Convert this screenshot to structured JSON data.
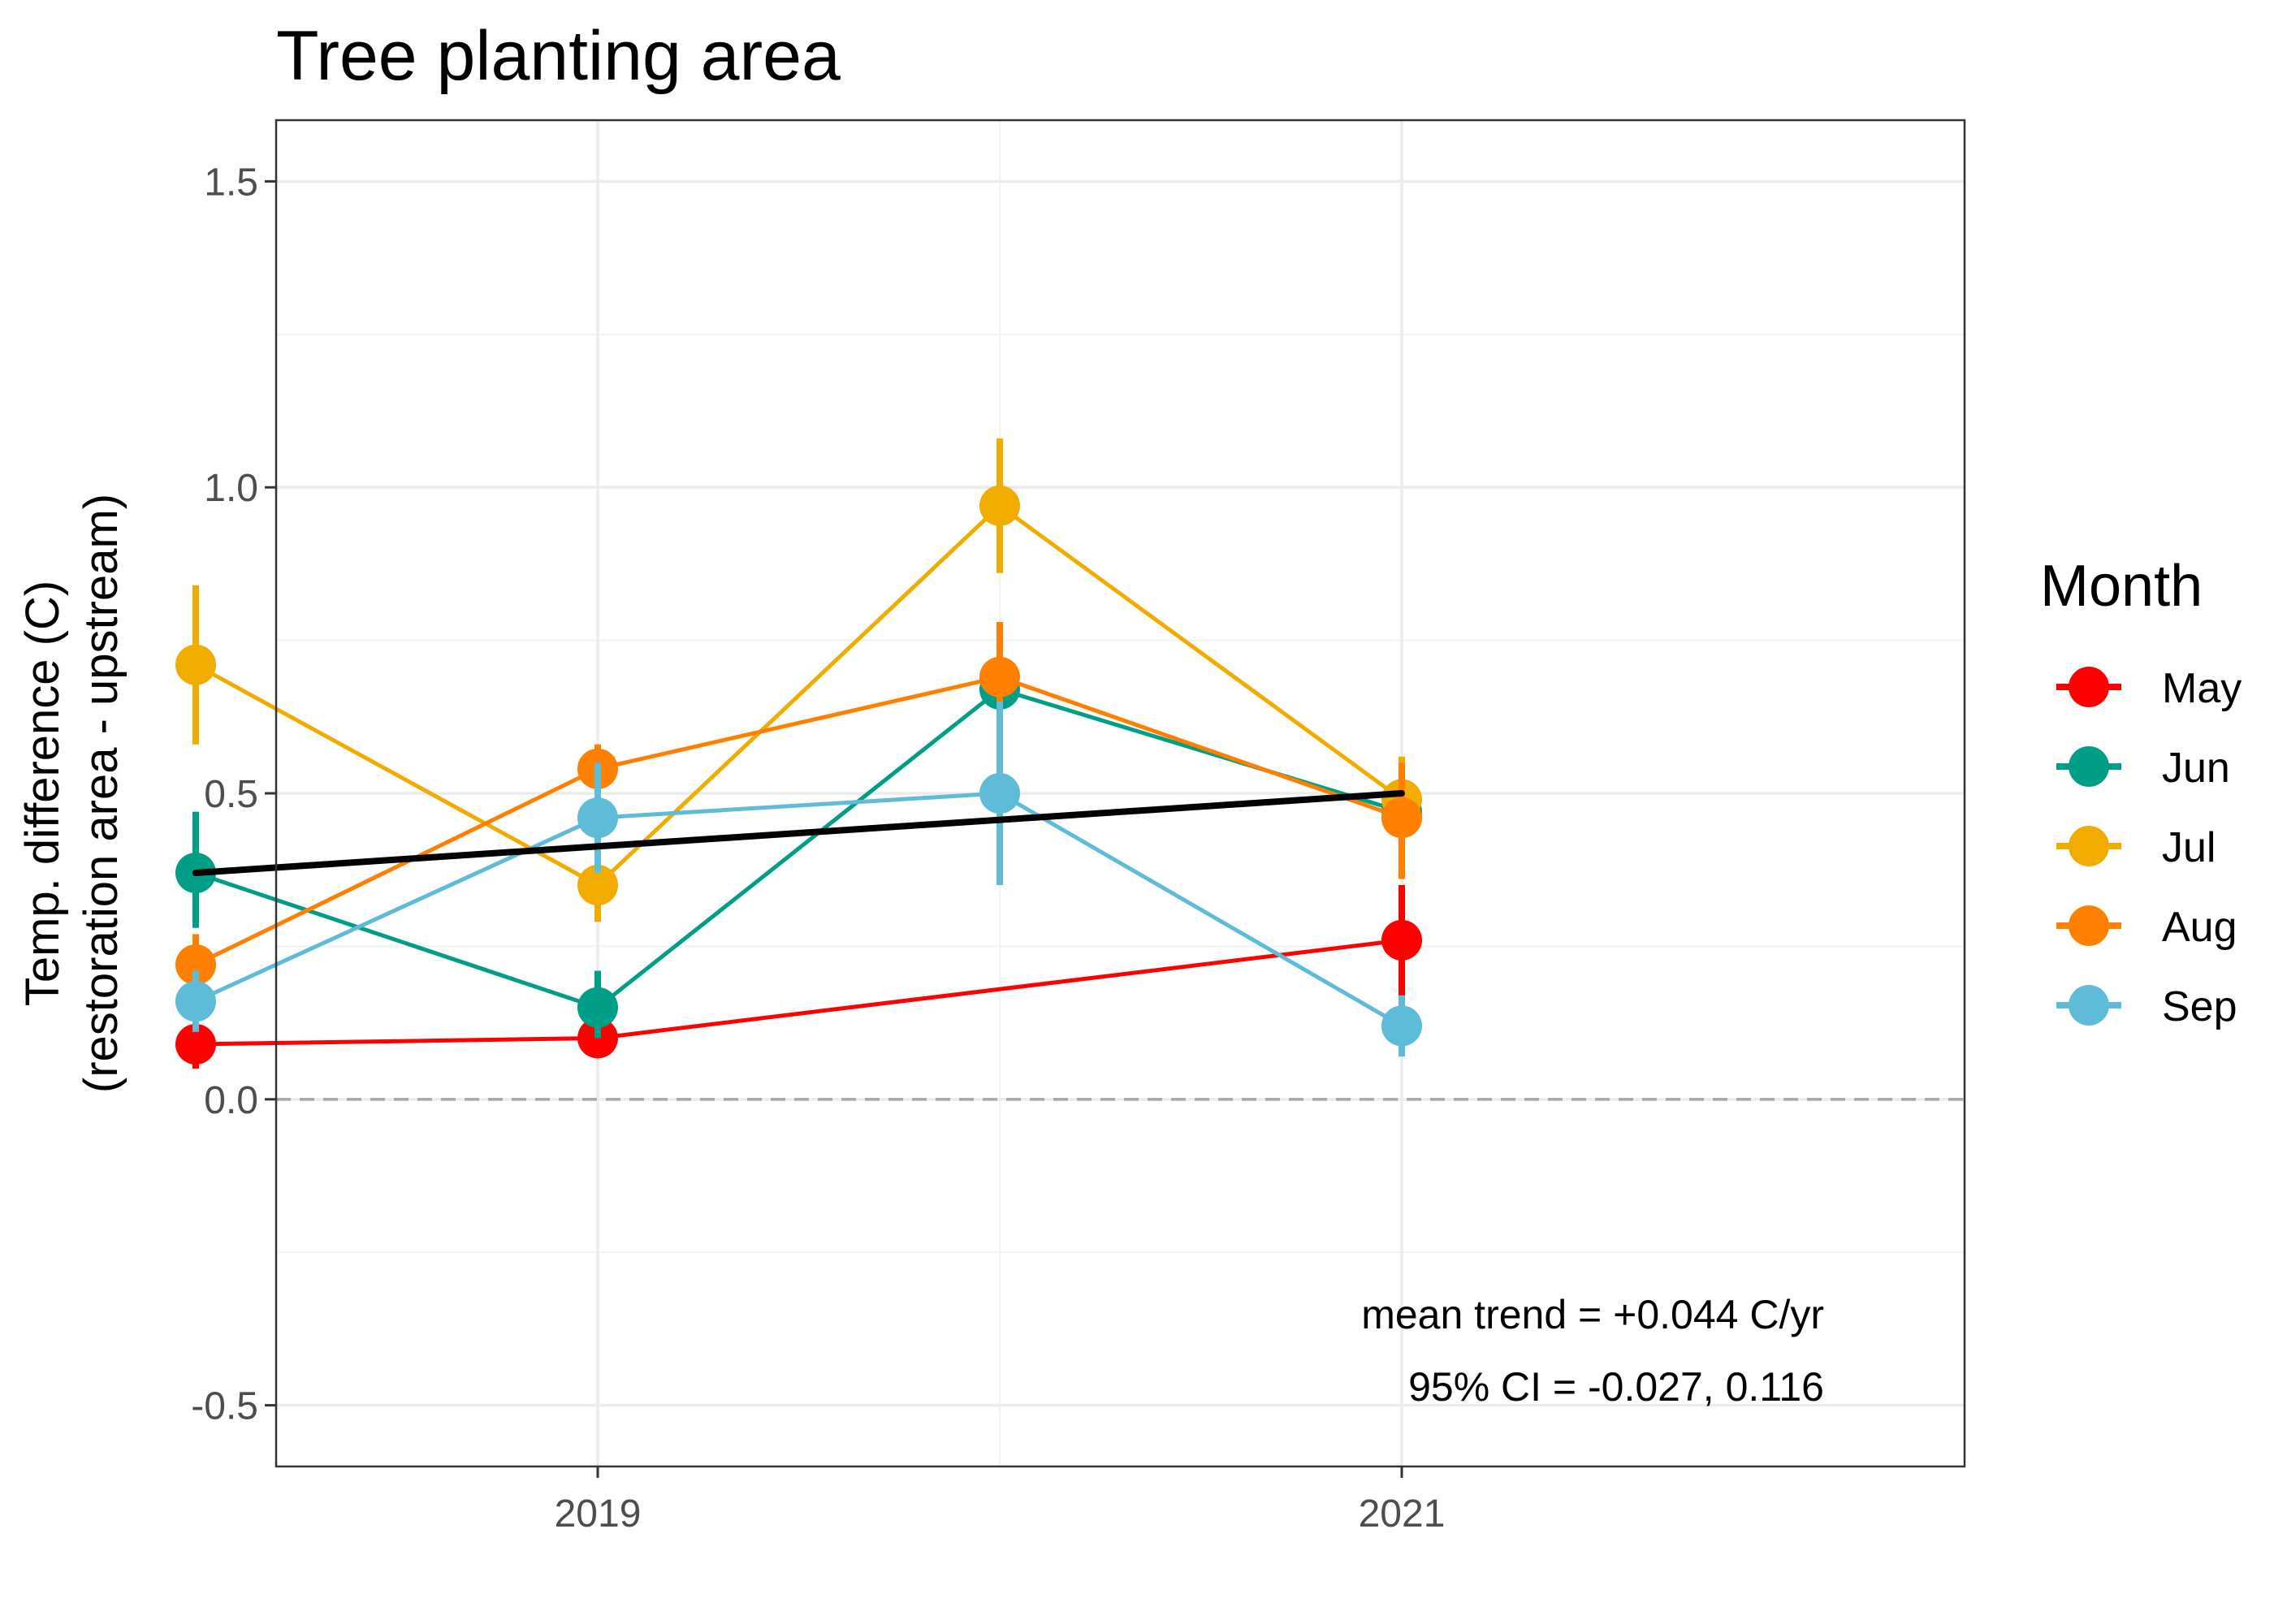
{
  "chart_data": {
    "type": "line",
    "title": "Tree planting area",
    "xlabel": "",
    "ylabel_line1": "Temp. difference (C)",
    "ylabel_line2": "(restoration area - upstream)",
    "xlim": [
      2018.2,
      2022.4
    ],
    "ylim": [
      -0.6,
      1.6
    ],
    "x_ticks": [
      {
        "value": 2019,
        "label": "2019"
      },
      {
        "value": 2021,
        "label": "2021"
      }
    ],
    "x_minor": [
      2020
    ],
    "y_ticks": [
      {
        "value": -0.5,
        "label": "-0.5"
      },
      {
        "value": 0,
        "label": "0.0"
      },
      {
        "value": 0.5,
        "label": "0.5"
      },
      {
        "value": 1,
        "label": "1.0"
      },
      {
        "value": 1.5,
        "label": "1.5"
      }
    ],
    "y_minor": [
      -0.25,
      0.25,
      0.75,
      1.25
    ],
    "grid": true,
    "reference_line": {
      "y": 0,
      "style": "dashed",
      "color": "#a6a6a6"
    },
    "legend": {
      "title": "Month",
      "placement": "right"
    },
    "series": [
      {
        "name": "May",
        "color": "#ff0000",
        "x": [
          2018,
          2019,
          2021
        ],
        "y": [
          0.09,
          0.1,
          0.26
        ],
        "ci_low": [
          0.05,
          0.07,
          0.16
        ],
        "ci_high": [
          0.13,
          0.13,
          0.35
        ]
      },
      {
        "name": "Jun",
        "color": "#009e87",
        "x": [
          2018,
          2019,
          2020,
          2021
        ],
        "y": [
          0.37,
          0.15,
          0.67,
          0.47
        ],
        "ci_low": [
          0.28,
          0.1,
          0.58,
          0.42
        ],
        "ci_high": [
          0.47,
          0.21,
          0.76,
          0.52
        ]
      },
      {
        "name": "Jul",
        "color": "#f2ac00",
        "x": [
          2018,
          2019,
          2020,
          2021
        ],
        "y": [
          0.71,
          0.35,
          0.97,
          0.49
        ],
        "ci_low": [
          0.58,
          0.29,
          0.86,
          0.42
        ],
        "ci_high": [
          0.84,
          0.41,
          1.08,
          0.56
        ]
      },
      {
        "name": "Aug",
        "color": "#ff8000",
        "x": [
          2018,
          2019,
          2020,
          2021
        ],
        "y": [
          0.22,
          0.54,
          0.69,
          0.46
        ],
        "ci_low": [
          0.17,
          0.5,
          0.6,
          0.36
        ],
        "ci_high": [
          0.27,
          0.58,
          0.78,
          0.55
        ]
      },
      {
        "name": "Sep",
        "color": "#5ebcd9",
        "x": [
          2018,
          2019,
          2020,
          2021
        ],
        "y": [
          0.16,
          0.46,
          0.5,
          0.12
        ],
        "ci_low": [
          0.11,
          0.37,
          0.35,
          0.07
        ],
        "ci_high": [
          0.21,
          0.55,
          0.65,
          0.17
        ]
      }
    ],
    "trend_line": {
      "color": "#000000",
      "x": [
        2018,
        2021
      ],
      "y": [
        0.37,
        0.5
      ]
    },
    "annotations": {
      "line1": "mean trend = +0.044 C/yr",
      "line2": "95% CI = -0.027, 0.116"
    }
  }
}
